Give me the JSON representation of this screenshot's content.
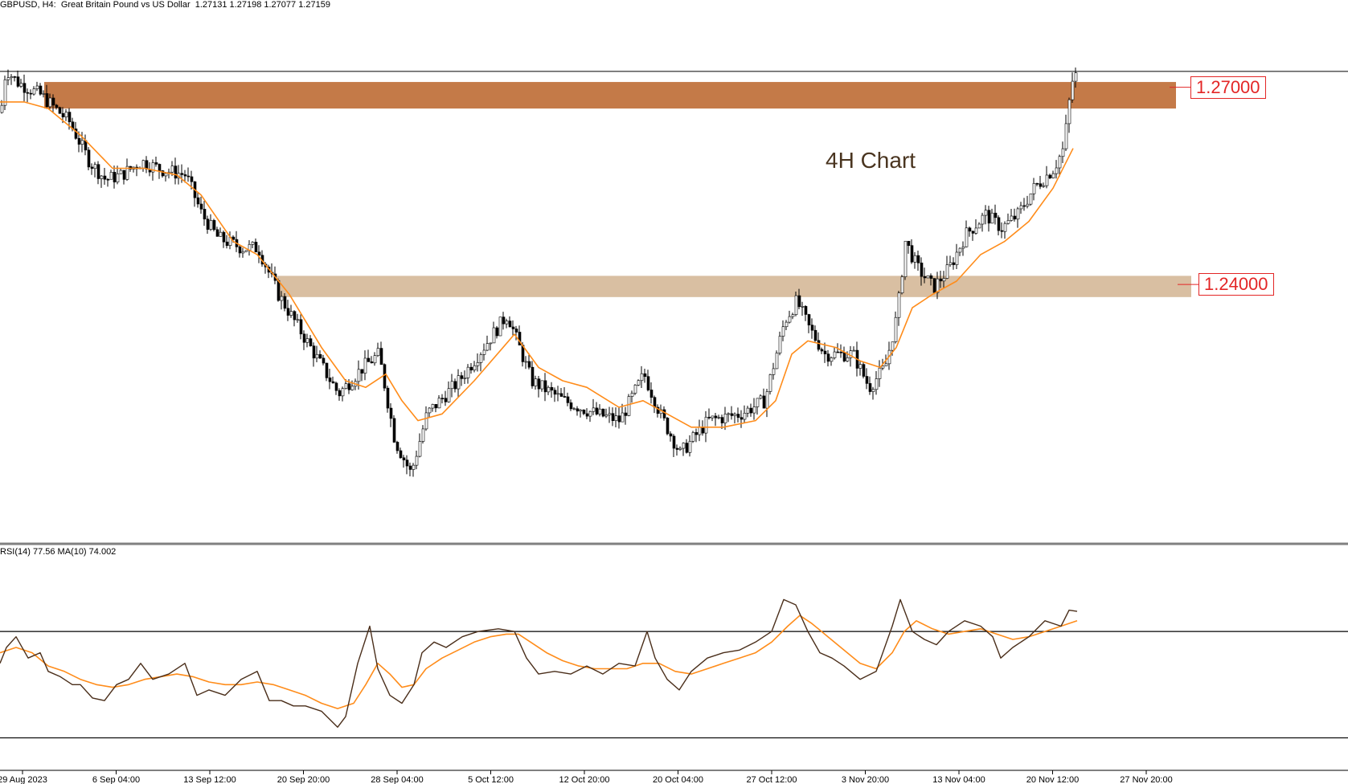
{
  "header": {
    "symbol": "GBPUSD, H4:",
    "description": "Great Britain Pound vs US Dollar",
    "ohlc": "1.27131 1.27198 1.27077 1.27159"
  },
  "annotation": "4H Chart",
  "rsi_header": "RSI(14) 77.56 MA(10) 74.002",
  "colors": {
    "candle": "#000000",
    "ma": "#ff8c1a",
    "zone_upper": "#c47a48",
    "zone_lower": "#d9bfa2",
    "level_label": "#e32626",
    "rsi_line": "#4a2e1a",
    "rsi_ma": "#ff8c1a",
    "separator": "#808080"
  },
  "chart_data": [
    {
      "type": "candlestick",
      "timeframe": "H4",
      "x_tick_labels": [
        "29 Aug 2023",
        "6 Sep 04:00",
        "13 Sep 12:00",
        "20 Sep 20:00",
        "28 Sep 04:00",
        "5 Oct 12:00",
        "12 Oct 20:00",
        "20 Oct 04:00",
        "27 Oct 12:00",
        "3 Nov 20:00",
        "13 Nov 04:00",
        "20 Nov 12:00",
        "27 Nov 20:00"
      ],
      "ylim": [
        1.2037,
        1.2763
      ],
      "price_path": [
        [
          0,
          1.2654
        ],
        [
          6,
          1.272
        ],
        [
          20,
          1.27
        ],
        [
          50,
          1.268
        ],
        [
          85,
          1.264
        ],
        [
          110,
          1.258
        ],
        [
          130,
          1.2553
        ],
        [
          150,
          1.256
        ],
        [
          175,
          1.258
        ],
        [
          200,
          1.2568
        ],
        [
          230,
          1.256
        ],
        [
          250,
          1.25
        ],
        [
          270,
          1.2465
        ],
        [
          300,
          1.245
        ],
        [
          320,
          1.245
        ],
        [
          345,
          1.238
        ],
        [
          380,
          1.231
        ],
        [
          420,
          1.223
        ],
        [
          450,
          1.227
        ],
        [
          470,
          1.229
        ],
        [
          490,
          1.216
        ],
        [
          510,
          1.211
        ],
        [
          530,
          1.22
        ],
        [
          570,
          1.225
        ],
        [
          600,
          1.23
        ],
        [
          630,
          1.235
        ],
        [
          660,
          1.225
        ],
        [
          700,
          1.222
        ],
        [
          740,
          1.22
        ],
        [
          770,
          1.219
        ],
        [
          800,
          1.226
        ],
        [
          820,
          1.22
        ],
        [
          845,
          1.214
        ],
        [
          880,
          1.219
        ],
        [
          920,
          1.22
        ],
        [
          950,
          1.222
        ],
        [
          975,
          1.234
        ],
        [
          990,
          1.237
        ],
        [
          1005,
          1.233
        ],
        [
          1025,
          1.229
        ],
        [
          1060,
          1.229
        ],
        [
          1080,
          1.224
        ],
        [
          1100,
          1.227
        ],
        [
          1115,
          1.235
        ],
        [
          1125,
          1.246
        ],
        [
          1140,
          1.242
        ],
        [
          1160,
          1.239
        ],
        [
          1180,
          1.242
        ],
        [
          1200,
          1.247
        ],
        [
          1225,
          1.25
        ],
        [
          1245,
          1.248
        ],
        [
          1265,
          1.25
        ],
        [
          1285,
          1.254
        ],
        [
          1310,
          1.257
        ],
        [
          1322,
          1.26
        ],
        [
          1332,
          1.27
        ],
        [
          1340,
          1.2715
        ]
      ],
      "ma_path": [
        [
          0,
          1.267
        ],
        [
          30,
          1.267
        ],
        [
          60,
          1.266
        ],
        [
          100,
          1.262
        ],
        [
          140,
          1.257
        ],
        [
          180,
          1.257
        ],
        [
          220,
          1.256
        ],
        [
          250,
          1.253
        ],
        [
          290,
          1.246
        ],
        [
          320,
          1.244
        ],
        [
          360,
          1.238
        ],
        [
          400,
          1.23
        ],
        [
          430,
          1.225
        ],
        [
          455,
          1.224
        ],
        [
          480,
          1.226
        ],
        [
          500,
          1.222
        ],
        [
          520,
          1.219
        ],
        [
          550,
          1.22
        ],
        [
          590,
          1.225
        ],
        [
          640,
          1.232
        ],
        [
          670,
          1.227
        ],
        [
          700,
          1.225
        ],
        [
          730,
          1.224
        ],
        [
          770,
          1.221
        ],
        [
          800,
          1.222
        ],
        [
          830,
          1.22
        ],
        [
          860,
          1.218
        ],
        [
          900,
          1.218
        ],
        [
          940,
          1.219
        ],
        [
          965,
          1.222
        ],
        [
          985,
          1.229
        ],
        [
          1005,
          1.231
        ],
        [
          1040,
          1.23
        ],
        [
          1070,
          1.228
        ],
        [
          1095,
          1.227
        ],
        [
          1115,
          1.23
        ],
        [
          1135,
          1.236
        ],
        [
          1160,
          1.238
        ],
        [
          1190,
          1.24
        ],
        [
          1220,
          1.244
        ],
        [
          1250,
          1.246
        ],
        [
          1280,
          1.249
        ],
        [
          1310,
          1.254
        ],
        [
          1335,
          1.26
        ]
      ],
      "zones": [
        {
          "from": 1.266,
          "to": 1.27,
          "label": "1.27000"
        },
        {
          "from": 1.2376,
          "to": 1.2408,
          "label": "1.24000"
        }
      ],
      "current_price": 1.27159
    },
    {
      "type": "line",
      "series": [
        {
          "name": "RSI(14)",
          "path": [
            [
              0,
              58
            ],
            [
              8,
              64
            ],
            [
              20,
              68
            ],
            [
              35,
              60
            ],
            [
              50,
              62
            ],
            [
              60,
              55
            ],
            [
              75,
              53
            ],
            [
              90,
              50
            ],
            [
              100,
              50
            ],
            [
              115,
              45
            ],
            [
              130,
              44
            ],
            [
              145,
              50
            ],
            [
              160,
              52
            ],
            [
              175,
              58
            ],
            [
              190,
              52
            ],
            [
              210,
              54
            ],
            [
              230,
              58
            ],
            [
              245,
              46
            ],
            [
              260,
              48
            ],
            [
              280,
              46
            ],
            [
              300,
              52
            ],
            [
              320,
              55
            ],
            [
              335,
              44
            ],
            [
              350,
              44
            ],
            [
              365,
              42
            ],
            [
              380,
              42
            ],
            [
              400,
              40
            ],
            [
              420,
              34
            ],
            [
              430,
              38
            ],
            [
              445,
              58
            ],
            [
              460,
              72
            ],
            [
              470,
              56
            ],
            [
              485,
              46
            ],
            [
              500,
              43
            ],
            [
              515,
              50
            ],
            [
              525,
              62
            ],
            [
              540,
              66
            ],
            [
              555,
              64
            ],
            [
              575,
              68
            ],
            [
              595,
              70
            ],
            [
              620,
              71
            ],
            [
              640,
              70
            ],
            [
              655,
              60
            ],
            [
              670,
              54
            ],
            [
              690,
              55
            ],
            [
              710,
              54
            ],
            [
              730,
              57
            ],
            [
              750,
              54
            ],
            [
              770,
              58
            ],
            [
              790,
              57
            ],
            [
              805,
              70
            ],
            [
              815,
              60
            ],
            [
              830,
              52
            ],
            [
              845,
              48
            ],
            [
              860,
              55
            ],
            [
              880,
              60
            ],
            [
              900,
              62
            ],
            [
              920,
              63
            ],
            [
              940,
              66
            ],
            [
              960,
              70
            ],
            [
              975,
              82
            ],
            [
              990,
              80
            ],
            [
              1005,
              70
            ],
            [
              1020,
              62
            ],
            [
              1035,
              60
            ],
            [
              1050,
              57
            ],
            [
              1070,
              52
            ],
            [
              1090,
              55
            ],
            [
              1110,
              72
            ],
            [
              1120,
              82
            ],
            [
              1135,
              70
            ],
            [
              1150,
              67
            ],
            [
              1165,
              65
            ],
            [
              1180,
              70
            ],
            [
              1200,
              74
            ],
            [
              1220,
              72
            ],
            [
              1235,
              68
            ],
            [
              1245,
              60
            ],
            [
              1260,
              64
            ],
            [
              1280,
              68
            ],
            [
              1300,
              74
            ],
            [
              1320,
              72
            ],
            [
              1330,
              78
            ],
            [
              1340,
              77.56
            ]
          ]
        },
        {
          "name": "MA(10)",
          "path": [
            [
              0,
              62
            ],
            [
              20,
              64
            ],
            [
              40,
              62
            ],
            [
              60,
              57
            ],
            [
              80,
              55
            ],
            [
              100,
              52
            ],
            [
              120,
              50
            ],
            [
              140,
              49
            ],
            [
              160,
              50
            ],
            [
              180,
              52
            ],
            [
              200,
              53
            ],
            [
              220,
              54
            ],
            [
              240,
              53
            ],
            [
              260,
              51
            ],
            [
              280,
              50
            ],
            [
              300,
              50
            ],
            [
              320,
              51
            ],
            [
              340,
              50
            ],
            [
              360,
              48
            ],
            [
              380,
              46
            ],
            [
              400,
              43
            ],
            [
              420,
              41
            ],
            [
              440,
              43
            ],
            [
              455,
              50
            ],
            [
              470,
              58
            ],
            [
              485,
              54
            ],
            [
              500,
              49
            ],
            [
              515,
              50
            ],
            [
              530,
              56
            ],
            [
              550,
              60
            ],
            [
              570,
              63
            ],
            [
              590,
              66
            ],
            [
              610,
              68
            ],
            [
              630,
              69
            ],
            [
              645,
              69
            ],
            [
              660,
              66
            ],
            [
              680,
              62
            ],
            [
              700,
              59
            ],
            [
              720,
              57
            ],
            [
              740,
              56
            ],
            [
              760,
              56
            ],
            [
              780,
              56
            ],
            [
              800,
              58
            ],
            [
              820,
              58
            ],
            [
              840,
              55
            ],
            [
              860,
              54
            ],
            [
              880,
              56
            ],
            [
              900,
              58
            ],
            [
              920,
              60
            ],
            [
              940,
              62
            ],
            [
              960,
              66
            ],
            [
              980,
              72
            ],
            [
              995,
              76
            ],
            [
              1010,
              73
            ],
            [
              1030,
              68
            ],
            [
              1050,
              63
            ],
            [
              1070,
              58
            ],
            [
              1090,
              56
            ],
            [
              1110,
              62
            ],
            [
              1125,
              70
            ],
            [
              1140,
              74
            ],
            [
              1160,
              71
            ],
            [
              1180,
              69
            ],
            [
              1200,
              70
            ],
            [
              1220,
              71
            ],
            [
              1240,
              69
            ],
            [
              1260,
              67
            ],
            [
              1280,
              68
            ],
            [
              1300,
              70
            ],
            [
              1320,
              72
            ],
            [
              1340,
              74
            ]
          ]
        }
      ],
      "overbought": 70,
      "oversold": 30,
      "ylim": [
        20.5,
        96
      ]
    }
  ]
}
